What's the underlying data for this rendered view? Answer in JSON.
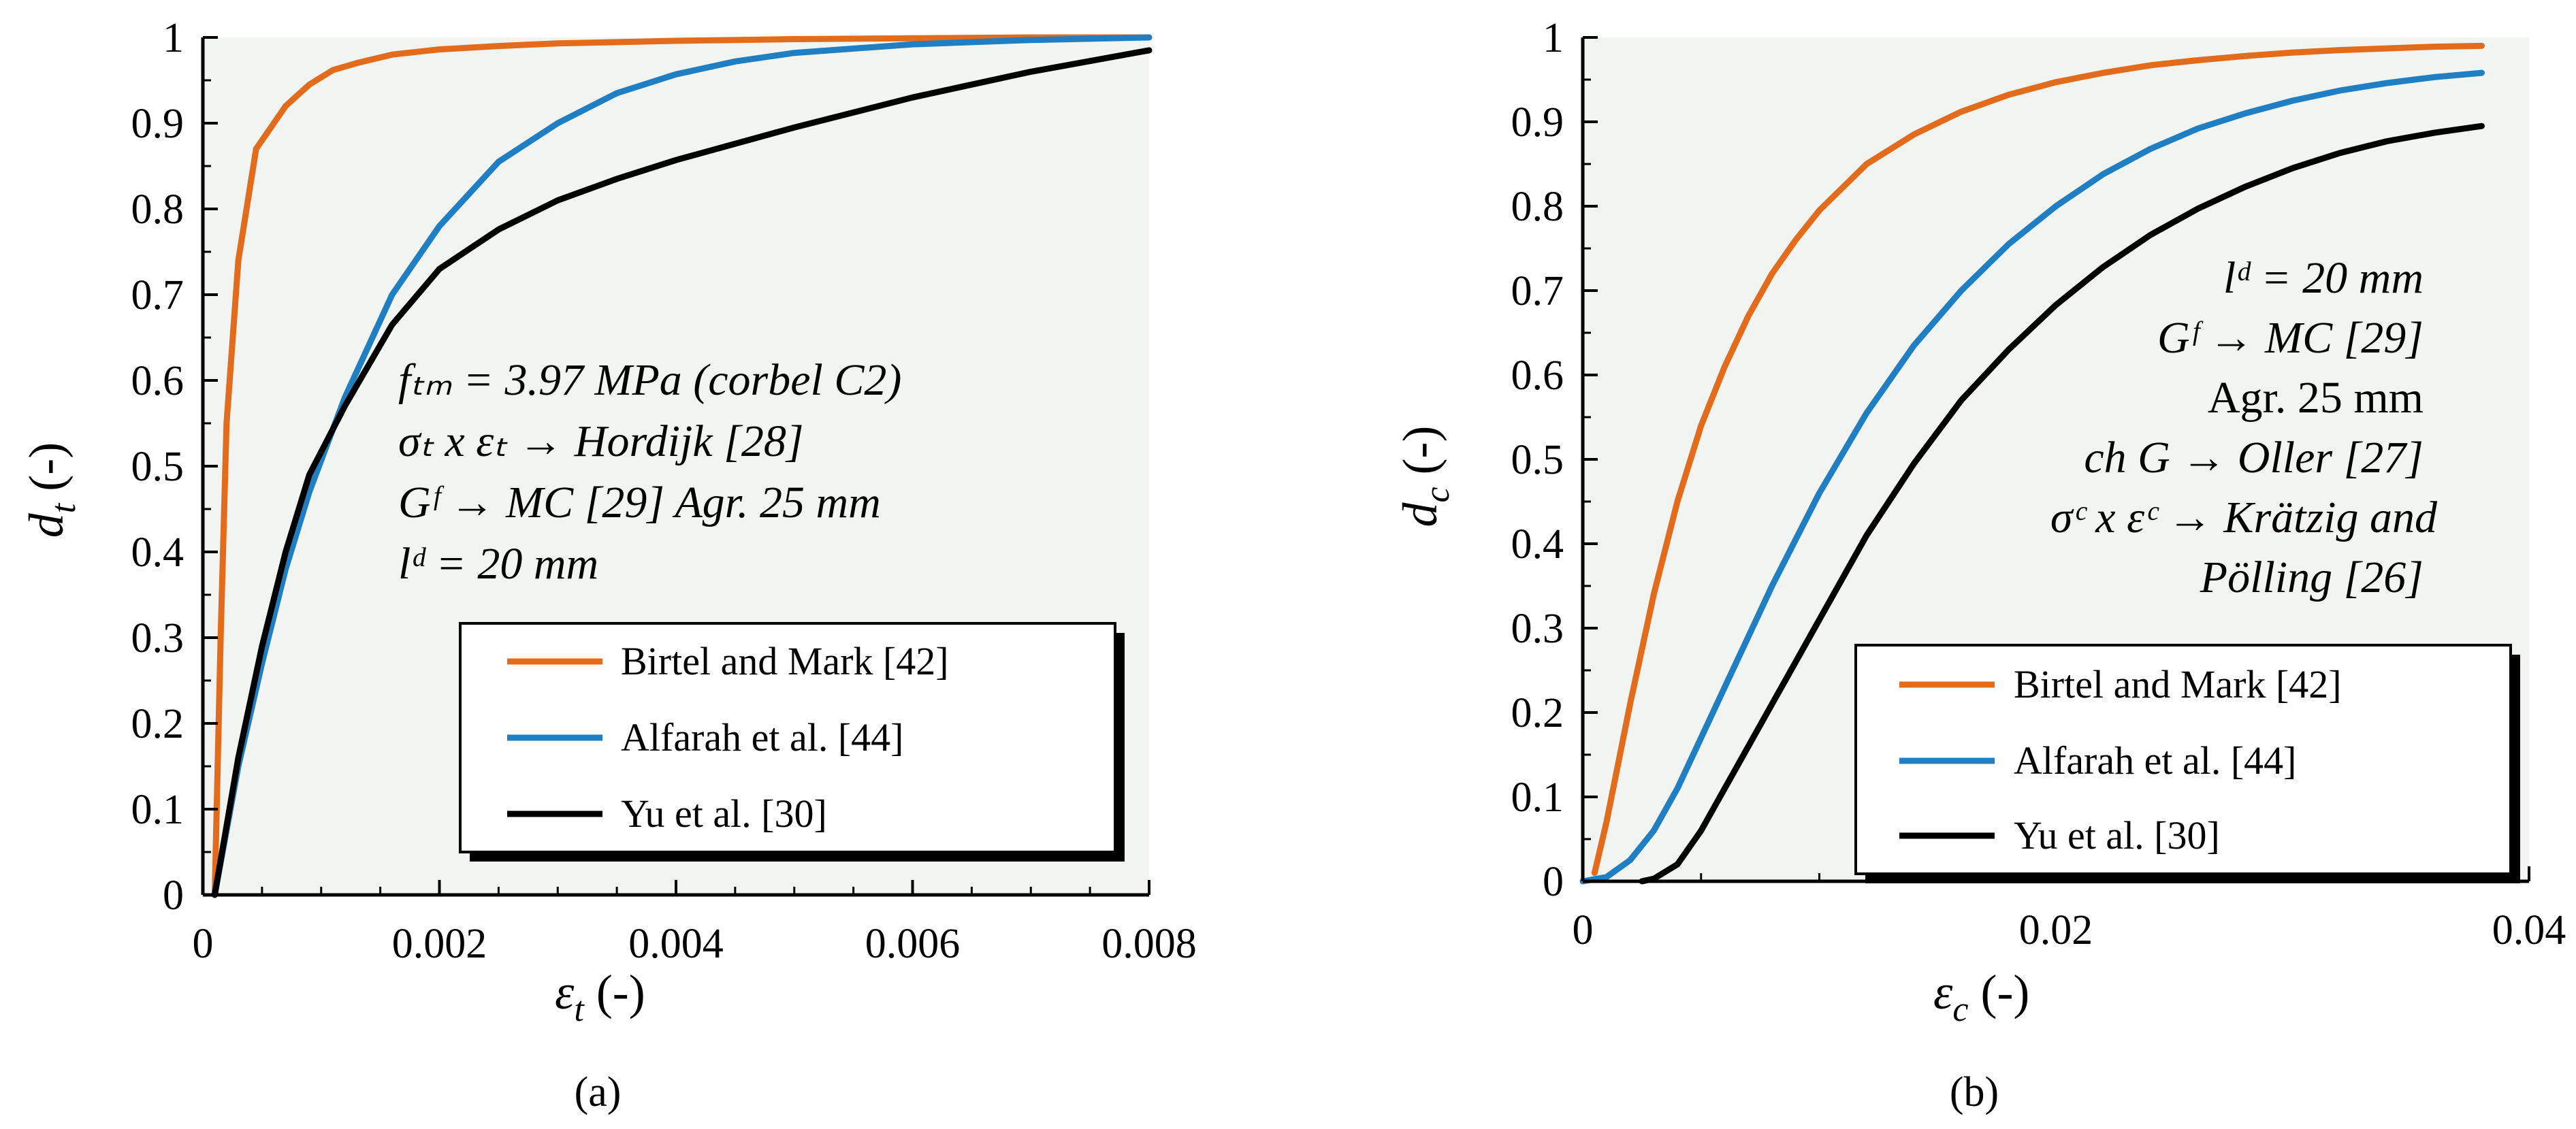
{
  "chart_data": [
    {
      "type": "line",
      "panel_label": "(a)",
      "xlabel": "ε",
      "xlabel_sub": "t",
      "xlabel_unit": " (-)",
      "ylabel": "d",
      "ylabel_sub": "t",
      "ylabel_unit": " (-)",
      "xlim": [
        0,
        0.008
      ],
      "ylim": [
        0,
        1
      ],
      "xticks": [
        "0",
        "0.002",
        "0.004",
        "0.006",
        "0.008"
      ],
      "yticks": [
        "0",
        "0.1",
        "0.2",
        "0.3",
        "0.4",
        "0.5",
        "0.6",
        "0.7",
        "0.8",
        "0.9",
        "1"
      ],
      "annotation_lines": [
        "fₜₘ = 3.97 MPa (corbel C2)",
        "σₜ x εₜ → Hordijk [28]",
        "Gᶠ → MC [29] Agr. 25 mm",
        "lᵈ  = 20 mm"
      ],
      "series": [
        {
          "name": "Birtel and Mark [42]",
          "color": "#e36c1c",
          "x": [
            0.0001,
            0.00015,
            0.0002,
            0.0003,
            0.00045,
            0.00055,
            0.0007,
            0.0009,
            0.0011,
            0.0013,
            0.0016,
            0.002,
            0.0025,
            0.003,
            0.004,
            0.005,
            0.006,
            0.007,
            0.008
          ],
          "y": [
            0,
            0.3,
            0.55,
            0.74,
            0.87,
            0.89,
            0.92,
            0.945,
            0.962,
            0.97,
            0.98,
            0.986,
            0.99,
            0.993,
            0.996,
            0.998,
            0.999,
            1.0,
            1.0
          ]
        },
        {
          "name": "Alfarah et al. [44]",
          "color": "#1f7fc2",
          "x": [
            0.0001,
            0.0003,
            0.0005,
            0.0007,
            0.0009,
            0.0012,
            0.0016,
            0.002,
            0.0025,
            0.003,
            0.0035,
            0.004,
            0.0045,
            0.005,
            0.006,
            0.007,
            0.008
          ],
          "y": [
            0,
            0.15,
            0.27,
            0.38,
            0.47,
            0.58,
            0.7,
            0.78,
            0.855,
            0.9,
            0.935,
            0.957,
            0.972,
            0.982,
            0.992,
            0.997,
            1.0
          ]
        },
        {
          "name": "Yu et al. [30]",
          "color": "#000000",
          "x": [
            0.0001,
            0.0003,
            0.0005,
            0.0007,
            0.0009,
            0.0012,
            0.0016,
            0.002,
            0.0025,
            0.003,
            0.0035,
            0.004,
            0.005,
            0.006,
            0.007,
            0.008
          ],
          "y": [
            0,
            0.16,
            0.29,
            0.4,
            0.49,
            0.57,
            0.665,
            0.73,
            0.776,
            0.81,
            0.835,
            0.857,
            0.895,
            0.93,
            0.96,
            0.985
          ]
        }
      ]
    },
    {
      "type": "line",
      "panel_label": "(b)",
      "xlabel": "ε",
      "xlabel_sub": "c",
      "xlabel_unit": " (-)",
      "ylabel": "d",
      "ylabel_sub": "c",
      "ylabel_unit": " (-)",
      "xlim": [
        0,
        0.04
      ],
      "ylim": [
        0,
        1
      ],
      "xticks": [
        "0",
        "0.02",
        "0.04"
      ],
      "yticks": [
        "0",
        "0.1",
        "0.2",
        "0.3",
        "0.4",
        "0.5",
        "0.6",
        "0.7",
        "0.8",
        "0.9",
        "1"
      ],
      "annotation_lines": [
        "lᵈ  = 20 mm",
        "Gᶠ → MC [29]",
        "Agr. 25 mm",
        "ch G   → Oller [27]",
        "σᶜ x εᶜ → Krätzig and",
        "Pölling [26]"
      ],
      "series": [
        {
          "name": "Birtel and Mark [42]",
          "color": "#e36c1c",
          "x": [
            0.0005,
            0.001,
            0.002,
            0.003,
            0.004,
            0.005,
            0.006,
            0.007,
            0.008,
            0.009,
            0.01,
            0.012,
            0.014,
            0.016,
            0.018,
            0.02,
            0.022,
            0.024,
            0.026,
            0.028,
            0.03,
            0.032,
            0.034,
            0.036,
            0.038
          ],
          "y": [
            0.01,
            0.07,
            0.21,
            0.34,
            0.45,
            0.54,
            0.61,
            0.67,
            0.72,
            0.76,
            0.795,
            0.85,
            0.885,
            0.912,
            0.932,
            0.947,
            0.958,
            0.967,
            0.973,
            0.978,
            0.982,
            0.985,
            0.987,
            0.989,
            0.99
          ]
        },
        {
          "name": "Alfarah et al. [44]",
          "color": "#1f7fc2",
          "x": [
            0,
            0.001,
            0.002,
            0.003,
            0.004,
            0.005,
            0.006,
            0.007,
            0.008,
            0.01,
            0.012,
            0.014,
            0.016,
            0.018,
            0.02,
            0.022,
            0.024,
            0.026,
            0.028,
            0.03,
            0.032,
            0.034,
            0.036,
            0.038
          ],
          "y": [
            0,
            0.005,
            0.025,
            0.06,
            0.11,
            0.17,
            0.23,
            0.29,
            0.35,
            0.46,
            0.555,
            0.635,
            0.7,
            0.755,
            0.8,
            0.838,
            0.868,
            0.892,
            0.91,
            0.925,
            0.937,
            0.946,
            0.953,
            0.958
          ]
        },
        {
          "name": "Yu et al. [30]",
          "color": "#000000",
          "x": [
            0.0025,
            0.003,
            0.004,
            0.005,
            0.006,
            0.007,
            0.008,
            0.009,
            0.01,
            0.012,
            0.014,
            0.016,
            0.018,
            0.02,
            0.022,
            0.024,
            0.026,
            0.028,
            0.03,
            0.032,
            0.034,
            0.036,
            0.038
          ],
          "y": [
            0,
            0.003,
            0.02,
            0.06,
            0.11,
            0.16,
            0.21,
            0.26,
            0.31,
            0.41,
            0.495,
            0.57,
            0.63,
            0.683,
            0.728,
            0.766,
            0.797,
            0.823,
            0.845,
            0.863,
            0.877,
            0.887,
            0.895
          ]
        }
      ]
    }
  ]
}
